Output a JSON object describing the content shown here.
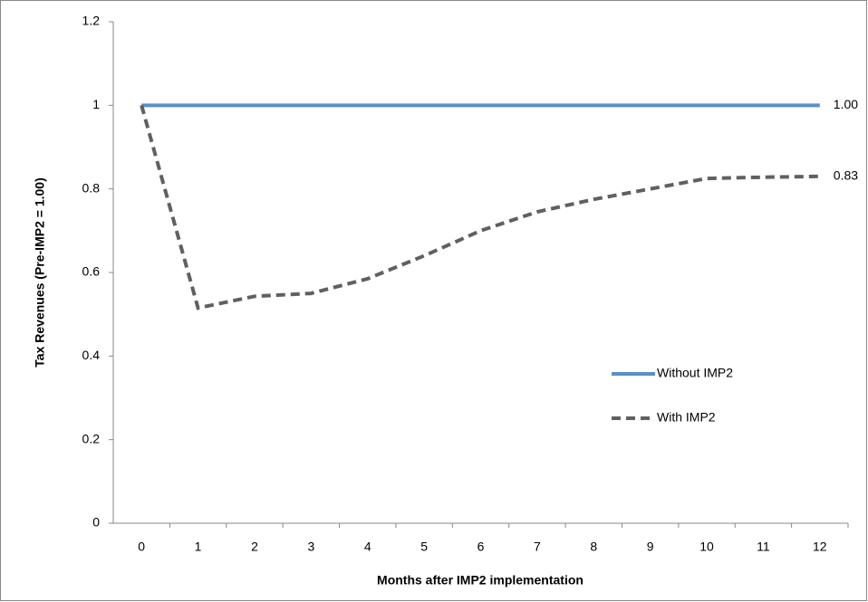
{
  "chart_data": {
    "type": "line",
    "x_label": "Months after IMP2 implementation",
    "y_label": "Tax Revenues (Pre-IMP2 = 1.00)",
    "categories": [
      "0",
      "1",
      "2",
      "3",
      "4",
      "5",
      "6",
      "7",
      "8",
      "9",
      "10",
      "11",
      "12"
    ],
    "series": [
      {
        "name": "Without IMP2",
        "color": "#5b8ec8",
        "dash": false,
        "values": [
          1,
          1,
          1,
          1,
          1,
          1,
          1,
          1,
          1,
          1,
          1,
          1,
          1
        ],
        "value_labels": [
          null,
          null,
          null,
          null,
          null,
          null,
          null,
          null,
          null,
          null,
          null,
          null,
          "1.00"
        ]
      },
      {
        "name": "With IMP2",
        "color": "#606060",
        "dash": true,
        "values": [
          1,
          0.515,
          0.543,
          0.55,
          0.585,
          0.64,
          0.7,
          0.745,
          0.775,
          0.8,
          0.825,
          0.828,
          0.83
        ],
        "value_labels": [
          null,
          null,
          null,
          null,
          null,
          null,
          null,
          null,
          null,
          null,
          null,
          null,
          "0.83"
        ]
      }
    ],
    "ylim": [
      0,
      1.2
    ],
    "yticks": [
      0,
      0.2,
      0.4,
      0.6,
      0.8,
      1,
      1.2
    ],
    "grid": false,
    "legend": "right"
  }
}
